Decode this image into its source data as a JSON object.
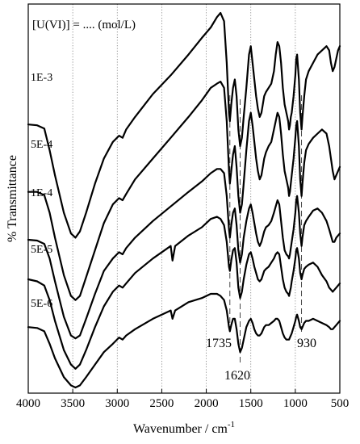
{
  "chart_data": {
    "type": "line",
    "title": "[U(VI)] = ....   (mol/L)",
    "xlabel": "Wavenumber / cm",
    "xlabel_superscript": "-1",
    "ylabel": "% Transmittance",
    "xlim": [
      4000,
      500
    ],
    "x_ticks": [
      4000,
      3500,
      3000,
      2500,
      2000,
      1500,
      1000,
      500
    ],
    "x_reversed": true,
    "y_axis_values": false,
    "grid": "vertical dotted at x ticks",
    "line_color": "#000000",
    "marker_lines": [
      {
        "x": 1735,
        "label": "1735",
        "style": "dashed"
      },
      {
        "x": 1620,
        "label": "1620",
        "style": "dashed"
      },
      {
        "x": 930,
        "label": "930",
        "style": "dashed"
      }
    ],
    "series": [
      {
        "name": "1E-3",
        "x": [
          4000,
          3900,
          3820,
          3760,
          3700,
          3600,
          3520,
          3470,
          3420,
          3350,
          3250,
          3150,
          3050,
          2980,
          2940,
          2900,
          2800,
          2600,
          2400,
          2200,
          2050,
          1950,
          1880,
          1840,
          1800,
          1770,
          1745,
          1735,
          1720,
          1700,
          1680,
          1660,
          1640,
          1620,
          1600,
          1580,
          1550,
          1520,
          1500,
          1480,
          1460,
          1440,
          1420,
          1400,
          1380,
          1350,
          1330,
          1300,
          1270,
          1240,
          1220,
          1200,
          1180,
          1160,
          1140,
          1120,
          1100,
          1080,
          1070,
          1060,
          1050,
          1040,
          1020,
          1000,
          990,
          980,
          960,
          945,
          930,
          920,
          900,
          880,
          850,
          800,
          750,
          700,
          650,
          620,
          600,
          580,
          560,
          540,
          520,
          500
        ],
        "y": [
          63.2,
          63.0,
          62.2,
          57,
          51,
          42,
          37.0,
          36.0,
          37.5,
          42,
          49,
          55,
          59,
          60.5,
          60.0,
          62,
          65,
          70.5,
          75,
          80,
          84,
          86.5,
          89,
          90.0,
          88,
          78,
          66,
          64,
          68,
          72,
          74,
          70,
          62,
          58,
          60,
          65,
          72,
          80,
          82,
          78,
          74,
          70,
          67,
          65,
          66,
          70,
          71,
          72,
          73,
          76,
          80,
          83,
          82,
          78,
          72,
          68,
          66,
          64,
          62,
          63,
          65,
          66,
          70,
          75,
          79,
          80,
          74,
          66,
          62,
          65,
          70,
          74,
          76,
          78,
          80,
          81,
          82,
          81,
          78,
          76,
          77,
          79,
          81,
          82
        ]
      },
      {
        "name": "5E-4",
        "x": [
          4000,
          3900,
          3820,
          3760,
          3700,
          3600,
          3520,
          3470,
          3420,
          3350,
          3250,
          3150,
          3050,
          2980,
          2940,
          2900,
          2800,
          2600,
          2400,
          2200,
          2050,
          1950,
          1880,
          1840,
          1800,
          1770,
          1745,
          1735,
          1720,
          1700,
          1680,
          1660,
          1640,
          1620,
          1600,
          1580,
          1550,
          1520,
          1500,
          1480,
          1460,
          1440,
          1420,
          1400,
          1380,
          1350,
          1330,
          1300,
          1270,
          1240,
          1220,
          1200,
          1180,
          1160,
          1140,
          1120,
          1100,
          1080,
          1070,
          1060,
          1050,
          1040,
          1020,
          1000,
          990,
          980,
          960,
          945,
          930,
          920,
          900,
          880,
          850,
          800,
          750,
          700,
          650,
          620,
          600,
          580,
          560,
          540,
          520,
          500
        ],
        "y": [
          47.0,
          47.0,
          46.2,
          42,
          36,
          27,
          22.0,
          21.0,
          22,
          26.5,
          33,
          39.5,
          44,
          45.5,
          45,
          46.5,
          50,
          55,
          60,
          65,
          69,
          72,
          73,
          73.5,
          72,
          64,
          52,
          49,
          52,
          56,
          58,
          53,
          46,
          42,
          44,
          49,
          57,
          64,
          66,
          63,
          59,
          55,
          52,
          50,
          51,
          55,
          56.5,
          58,
          59,
          62,
          64,
          66,
          65,
          61,
          56,
          52,
          50,
          48,
          46,
          47,
          49,
          51,
          55,
          60,
          63,
          64,
          58,
          50,
          46,
          49,
          54,
          57,
          58.5,
          60,
          61,
          62,
          61,
          58,
          55,
          52,
          50,
          51,
          52,
          53
        ]
      },
      {
        "name": "1E-4",
        "x": [
          4000,
          3900,
          3820,
          3760,
          3700,
          3600,
          3520,
          3470,
          3420,
          3350,
          3250,
          3150,
          3050,
          2980,
          2940,
          2900,
          2800,
          2600,
          2400,
          2200,
          2050,
          1950,
          1880,
          1840,
          1800,
          1770,
          1745,
          1735,
          1720,
          1700,
          1680,
          1660,
          1640,
          1620,
          1600,
          1580,
          1550,
          1520,
          1500,
          1480,
          1460,
          1440,
          1420,
          1400,
          1380,
          1350,
          1330,
          1300,
          1270,
          1240,
          1220,
          1200,
          1180,
          1160,
          1140,
          1120,
          1100,
          1080,
          1070,
          1060,
          1050,
          1040,
          1020,
          1000,
          990,
          980,
          960,
          945,
          930,
          920,
          900,
          880,
          850,
          800,
          750,
          700,
          650,
          620,
          600,
          580,
          560,
          540,
          520,
          500
        ],
        "y": [
          35.5,
          35.3,
          34.5,
          31,
          25.5,
          17,
          12.5,
          11.8,
          12.5,
          16.5,
          22.5,
          28,
          31,
          32.5,
          32,
          33.5,
          36,
          40,
          43.5,
          47,
          49.5,
          51.5,
          52.5,
          52.5,
          51.5,
          46,
          38,
          36,
          39,
          42,
          43,
          39,
          33,
          30,
          32,
          36,
          40,
          43,
          44,
          42,
          39.5,
          37,
          35,
          34,
          35,
          37.5,
          38.5,
          39,
          40,
          42,
          43.5,
          45,
          44,
          40,
          36,
          33,
          32,
          31.5,
          31,
          32,
          33.5,
          35,
          38,
          42,
          45,
          46,
          42,
          37,
          34,
          36,
          39,
          40,
          41,
          42.5,
          43,
          42,
          40,
          38,
          36.5,
          35,
          35,
          36,
          36.5,
          37
        ]
      },
      {
        "name": "5E-5",
        "x": [
          4000,
          3900,
          3820,
          3760,
          3700,
          3600,
          3520,
          3470,
          3420,
          3350,
          3250,
          3150,
          3050,
          2980,
          2940,
          2900,
          2800,
          2600,
          2400,
          2380,
          2350,
          2200,
          2050,
          1950,
          1880,
          1840,
          1800,
          1770,
          1745,
          1735,
          1720,
          1700,
          1680,
          1660,
          1640,
          1620,
          1600,
          1580,
          1550,
          1520,
          1500,
          1480,
          1460,
          1440,
          1420,
          1400,
          1380,
          1350,
          1330,
          1300,
          1270,
          1240,
          1220,
          1200,
          1180,
          1160,
          1140,
          1120,
          1100,
          1080,
          1070,
          1060,
          1050,
          1040,
          1020,
          1000,
          990,
          980,
          960,
          945,
          930,
          920,
          900,
          880,
          850,
          800,
          750,
          700,
          650,
          620,
          600,
          580,
          560,
          540,
          520,
          500
        ],
        "y": [
          26,
          25.5,
          24.5,
          21,
          16,
          9,
          5.5,
          4.5,
          5.5,
          9,
          14.5,
          19.5,
          23,
          24.5,
          24,
          25,
          27.5,
          31,
          34,
          30.5,
          34,
          36.5,
          38.5,
          40.5,
          41,
          40.5,
          39,
          35,
          29,
          28,
          30.5,
          33,
          33.5,
          30,
          24,
          21.5,
          23,
          26,
          29.5,
          32,
          32.5,
          31,
          29,
          27.5,
          26,
          25.5,
          26,
          28,
          28.5,
          29,
          30,
          31,
          32,
          32.5,
          32,
          29,
          26,
          24,
          23,
          22.5,
          22,
          23,
          24,
          25.5,
          28,
          31,
          33,
          33.5,
          31,
          27.5,
          26,
          27,
          28.5,
          29,
          29.5,
          30,
          29,
          27,
          25.5,
          24,
          23.5,
          23,
          23.5,
          24,
          24.5,
          25
        ]
      },
      {
        "name": "5E-6",
        "x": [
          4000,
          3900,
          3820,
          3760,
          3700,
          3600,
          3520,
          3470,
          3420,
          3350,
          3250,
          3150,
          3050,
          2980,
          2940,
          2900,
          2800,
          2600,
          2400,
          2380,
          2350,
          2200,
          2050,
          1950,
          1880,
          1840,
          1800,
          1770,
          1745,
          1735,
          1720,
          1700,
          1680,
          1660,
          1640,
          1620,
          1600,
          1580,
          1550,
          1520,
          1500,
          1480,
          1460,
          1440,
          1420,
          1400,
          1380,
          1350,
          1330,
          1300,
          1270,
          1240,
          1220,
          1200,
          1180,
          1160,
          1140,
          1120,
          1100,
          1080,
          1070,
          1060,
          1050,
          1040,
          1020,
          1000,
          990,
          980,
          960,
          945,
          930,
          920,
          900,
          880,
          850,
          800,
          750,
          700,
          650,
          620,
          600,
          580,
          560,
          540,
          520,
          500
        ],
        "y": [
          14.5,
          14.3,
          13.5,
          10.5,
          7,
          2.5,
          0.5,
          0,
          0.5,
          2.5,
          5.5,
          8.5,
          10.5,
          12,
          11.5,
          12.5,
          14,
          16.5,
          18.5,
          16.5,
          18.5,
          20.5,
          21.5,
          22.5,
          22.5,
          22,
          21,
          18.5,
          14.5,
          13.5,
          15,
          16.5,
          16.5,
          14,
          10.5,
          8.5,
          9.5,
          11.5,
          14.5,
          16,
          16.5,
          15.5,
          14,
          13,
          12.5,
          12.5,
          13,
          14.5,
          15,
          15,
          15.5,
          16,
          16.5,
          16.5,
          16,
          14.5,
          13,
          12,
          11.5,
          11.5,
          11.5,
          12,
          12.5,
          13,
          14.5,
          16,
          17,
          17.5,
          16,
          14.5,
          14,
          14.5,
          15.5,
          16,
          16,
          16.5,
          16,
          15.5,
          15,
          14.5,
          14,
          14,
          14.5,
          15,
          15.5,
          16
        ]
      }
    ]
  }
}
